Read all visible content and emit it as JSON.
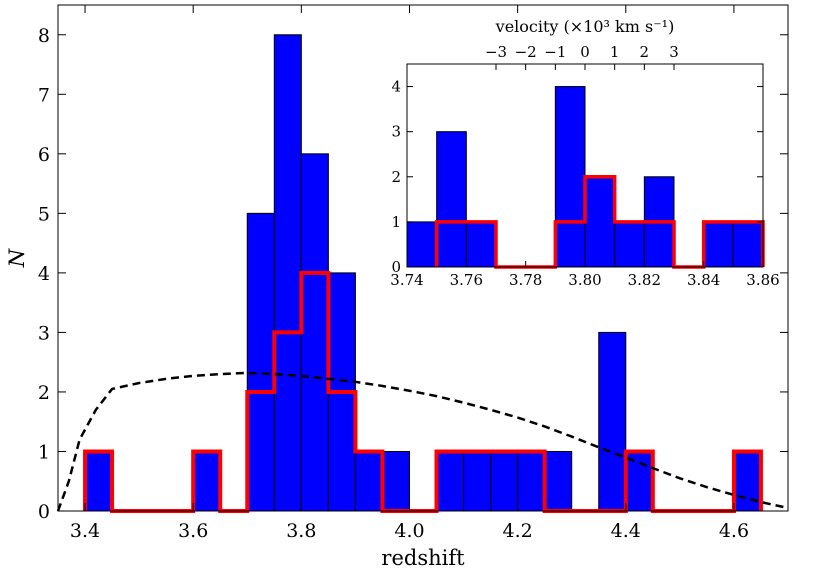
{
  "chart_data": [
    {
      "id": "main",
      "type": "bar",
      "xlabel": "redshift",
      "ylabel": "N",
      "xlim": [
        3.35,
        4.7
      ],
      "ylim": [
        0,
        8.5
      ],
      "xticks": [
        3.4,
        3.6,
        3.8,
        4.0,
        4.2,
        4.4,
        4.6
      ],
      "xtick_labels": [
        "3.4",
        "3.6",
        "3.8",
        "4.0",
        "4.2",
        "4.4",
        "4.6"
      ],
      "yticks": [
        0,
        1,
        2,
        3,
        4,
        5,
        6,
        7,
        8
      ],
      "ytick_labels": [
        "0",
        "1",
        "2",
        "3",
        "4",
        "5",
        "6",
        "7",
        "8"
      ],
      "bin_width": 0.05,
      "series": [
        {
          "style": "filled-histogram",
          "color": "#0000ff",
          "bins": [
            {
              "x0": 3.4,
              "value": 1
            },
            {
              "x0": 3.6,
              "value": 1
            },
            {
              "x0": 3.7,
              "value": 5
            },
            {
              "x0": 3.75,
              "value": 8
            },
            {
              "x0": 3.8,
              "value": 6
            },
            {
              "x0": 3.85,
              "value": 4
            },
            {
              "x0": 3.9,
              "value": 1
            },
            {
              "x0": 3.95,
              "value": 1
            },
            {
              "x0": 4.05,
              "value": 1
            },
            {
              "x0": 4.1,
              "value": 1
            },
            {
              "x0": 4.15,
              "value": 1
            },
            {
              "x0": 4.2,
              "value": 1
            },
            {
              "x0": 4.25,
              "value": 1
            },
            {
              "x0": 4.35,
              "value": 3
            },
            {
              "x0": 4.4,
              "value": 1
            },
            {
              "x0": 4.6,
              "value": 1
            }
          ]
        },
        {
          "style": "step-histogram",
          "color": "#ff0000",
          "bins": [
            {
              "x0": 3.4,
              "value": 1
            },
            {
              "x0": 3.6,
              "value": 1
            },
            {
              "x0": 3.7,
              "value": 2
            },
            {
              "x0": 3.75,
              "value": 3
            },
            {
              "x0": 3.8,
              "value": 4
            },
            {
              "x0": 3.85,
              "value": 2
            },
            {
              "x0": 3.9,
              "value": 1
            },
            {
              "x0": 4.05,
              "value": 1
            },
            {
              "x0": 4.1,
              "value": 1
            },
            {
              "x0": 4.15,
              "value": 1
            },
            {
              "x0": 4.2,
              "value": 1
            },
            {
              "x0": 4.4,
              "value": 1
            },
            {
              "x0": 4.6,
              "value": 1
            }
          ]
        },
        {
          "style": "dashed-line",
          "color": "#000000",
          "points": [
            [
              3.35,
              0.0
            ],
            [
              3.37,
              0.5
            ],
            [
              3.39,
              1.2
            ],
            [
              3.42,
              1.7
            ],
            [
              3.45,
              2.05
            ],
            [
              3.5,
              2.15
            ],
            [
              3.55,
              2.22
            ],
            [
              3.6,
              2.27
            ],
            [
              3.65,
              2.3
            ],
            [
              3.7,
              2.32
            ],
            [
              3.75,
              2.3
            ],
            [
              3.8,
              2.27
            ],
            [
              3.85,
              2.22
            ],
            [
              3.9,
              2.17
            ],
            [
              3.95,
              2.1
            ],
            [
              4.0,
              2.02
            ],
            [
              4.05,
              1.93
            ],
            [
              4.1,
              1.82
            ],
            [
              4.15,
              1.7
            ],
            [
              4.2,
              1.57
            ],
            [
              4.25,
              1.42
            ],
            [
              4.3,
              1.25
            ],
            [
              4.35,
              1.07
            ],
            [
              4.4,
              0.9
            ],
            [
              4.45,
              0.72
            ],
            [
              4.5,
              0.55
            ],
            [
              4.55,
              0.4
            ],
            [
              4.6,
              0.27
            ],
            [
              4.65,
              0.15
            ],
            [
              4.7,
              0.05
            ]
          ]
        }
      ]
    },
    {
      "id": "inset",
      "type": "bar",
      "xlabel": "",
      "top_axis_label": "velocity (×10³ km s⁻¹)",
      "xlim": [
        3.74,
        3.86
      ],
      "ylim": [
        0,
        4.5
      ],
      "xticks": [
        3.74,
        3.76,
        3.78,
        3.8,
        3.82,
        3.84,
        3.86
      ],
      "xtick_labels": [
        "3.74",
        "3.76",
        "3.78",
        "3.80",
        "3.82",
        "3.84",
        "3.86"
      ],
      "yticks": [
        0,
        1,
        2,
        3,
        4
      ],
      "ytick_labels": [
        "0",
        "1",
        "2",
        "3",
        "4"
      ],
      "top_ticks": [
        -3,
        -2,
        -1,
        0,
        1,
        2,
        3
      ],
      "top_tick_labels": [
        "−3",
        "−2",
        "−1",
        "0",
        "1",
        "2",
        "3"
      ],
      "top_axis_unit_per_tick": 0.01,
      "top_axis_zero_at": 3.8,
      "bin_width": 0.01,
      "series": [
        {
          "style": "filled-histogram",
          "color": "#0000ff",
          "bins": [
            {
              "x0": 3.74,
              "value": 1
            },
            {
              "x0": 3.75,
              "value": 3
            },
            {
              "x0": 3.76,
              "value": 1
            },
            {
              "x0": 3.79,
              "value": 4
            },
            {
              "x0": 3.8,
              "value": 2
            },
            {
              "x0": 3.81,
              "value": 1
            },
            {
              "x0": 3.82,
              "value": 2
            },
            {
              "x0": 3.84,
              "value": 1
            },
            {
              "x0": 3.85,
              "value": 1
            }
          ]
        },
        {
          "style": "step-histogram",
          "color": "#ff0000",
          "bins": [
            {
              "x0": 3.75,
              "value": 1
            },
            {
              "x0": 3.76,
              "value": 1
            },
            {
              "x0": 3.79,
              "value": 1
            },
            {
              "x0": 3.8,
              "value": 2
            },
            {
              "x0": 3.81,
              "value": 1
            },
            {
              "x0": 3.82,
              "value": 1
            },
            {
              "x0": 3.84,
              "value": 1
            },
            {
              "x0": 3.85,
              "value": 1
            }
          ]
        }
      ]
    }
  ]
}
